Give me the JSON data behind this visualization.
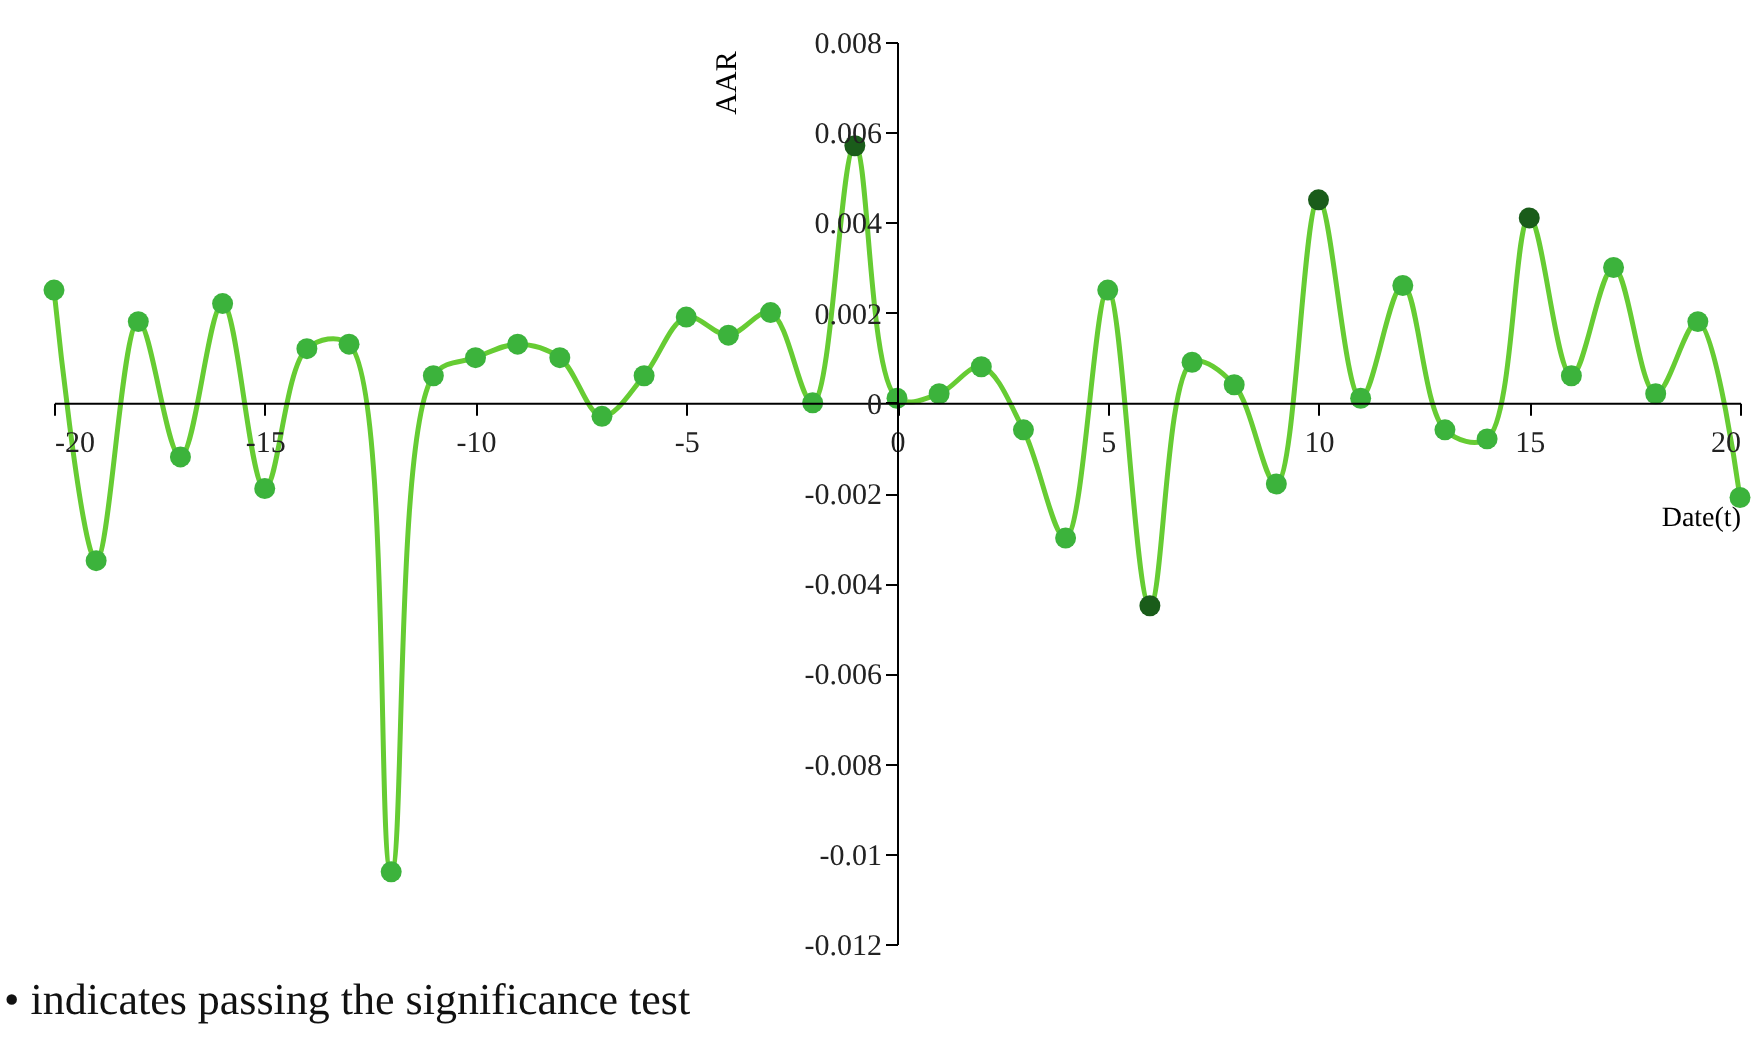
{
  "chart_data": {
    "type": "line",
    "xlabel": "Date(t)",
    "ylabel": "AAR",
    "x": [
      -20,
      -19,
      -18,
      -17,
      -16,
      -15,
      -14,
      -13,
      -12,
      -11,
      -10,
      -9,
      -8,
      -7,
      -6,
      -5,
      -4,
      -3,
      -2,
      -1,
      0,
      1,
      2,
      3,
      4,
      5,
      6,
      7,
      8,
      9,
      10,
      11,
      12,
      13,
      14,
      15,
      16,
      17,
      18,
      19,
      20
    ],
    "series": [
      {
        "color": "#66cc33",
        "values": [
          0.0025,
          -0.0035,
          0.0018,
          -0.0012,
          0.0022,
          -0.0019,
          0.0012,
          0.0013,
          -0.0104,
          0.0006,
          0.001,
          0.0013,
          0.001,
          -0.0003,
          0.0006,
          0.0019,
          0.0015,
          0.002,
          0.0,
          0.0057,
          0.0001,
          0.0002,
          0.0008,
          -0.0006,
          -0.003,
          0.0025,
          -0.0045,
          0.0009,
          0.0004,
          -0.0018,
          0.0045,
          0.0001,
          0.0026,
          -0.0006,
          -0.0008,
          0.0041,
          0.0006,
          0.003,
          0.0002,
          0.0018,
          -0.0021
        ],
        "colors": [
          "#3cb33c",
          "#3cb33c",
          "#3cb33c",
          "#3cb33c",
          "#3cb33c",
          "#3cb33c",
          "#3cb33c",
          "#3cb33c",
          "#3cb33c",
          "#3cb33c",
          "#3cb33c",
          "#3cb33c",
          "#3cb33c",
          "#3cb33c",
          "#3cb33c",
          "#3cb33c",
          "#3cb33c",
          "#3cb33c",
          "#3cb33c",
          "#1a5c1a",
          "#3cb33c",
          "#3cb33c",
          "#3cb33c",
          "#3cb33c",
          "#3cb33c",
          "#3cb33c",
          "#1a5c1a",
          "#3cb33c",
          "#3cb33c",
          "#3cb33c",
          "#1a5c1a",
          "#3cb33c",
          "#3cb33c",
          "#3cb33c",
          "#3cb33c",
          "#1a5c1a",
          "#3cb33c",
          "#3cb33c",
          "#3cb33c",
          "#3cb33c",
          "#3cb33c"
        ]
      }
    ],
    "xlim": [
      -20,
      20
    ],
    "xticks": [
      -20,
      -15,
      -10,
      -5,
      0,
      5,
      10,
      15,
      20
    ],
    "ylim": [
      -0.012,
      0.008
    ],
    "yticks": [
      -0.012,
      -0.01,
      -0.008,
      -0.006,
      -0.004,
      -0.002,
      0,
      0.002,
      0.004,
      0.006,
      0.008
    ],
    "grid": false,
    "marker": "circle",
    "line_style": "solid",
    "annotations": [
      "• indicates passing the significance test"
    ]
  }
}
